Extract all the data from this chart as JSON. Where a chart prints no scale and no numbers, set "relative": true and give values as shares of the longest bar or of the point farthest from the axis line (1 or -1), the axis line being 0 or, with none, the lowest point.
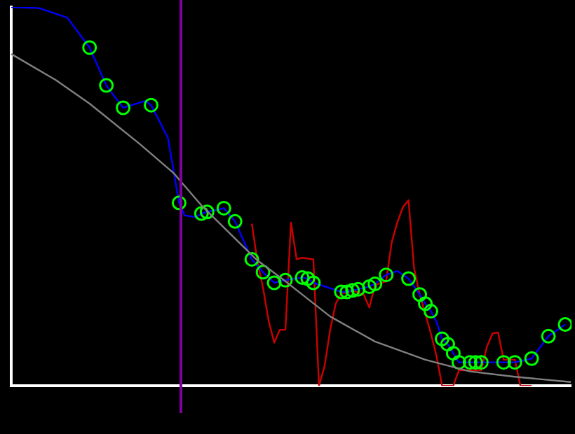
{
  "chart_data": {
    "type": "line",
    "relative": true,
    "categories": [
      null,
      null,
      null,
      null,
      null,
      null,
      null,
      null,
      null,
      null,
      null,
      null,
      null,
      null,
      null,
      null,
      null,
      null,
      null,
      null,
      null,
      null,
      null,
      null,
      null,
      null,
      null,
      null,
      null,
      null,
      null,
      null,
      null,
      null,
      null,
      null,
      null,
      null,
      null,
      null,
      null,
      null,
      null,
      null,
      null,
      null,
      null,
      null,
      null,
      null,
      null,
      null,
      null,
      null,
      null,
      null,
      null,
      null,
      null,
      null,
      null,
      null,
      null,
      null,
      null,
      null,
      null,
      null,
      null,
      null,
      null,
      null,
      null,
      null,
      null,
      null,
      null,
      null,
      null,
      null,
      null,
      null,
      null,
      null,
      null,
      null,
      null,
      null,
      null,
      null,
      null,
      null,
      null,
      null,
      null,
      null,
      null,
      null,
      null,
      null,
      null
    ],
    "series": [
      {
        "type": "line",
        "color": "#808080",
        "marker": "none",
        "values": [
          0.876,
          null,
          null,
          null,
          null,
          null,
          null,
          null,
          0.807,
          null,
          null,
          null,
          null,
          null,
          0.745,
          null,
          null,
          null,
          null,
          null,
          null,
          null,
          null,
          0.638,
          null,
          null,
          null,
          null,
          null,
          0.562,
          null,
          null,
          null,
          null,
          0.476,
          null,
          null,
          null,
          null,
          null,
          null,
          null,
          null,
          null,
          0.331,
          null,
          null,
          null,
          null,
          0.276,
          null,
          null,
          null,
          null,
          null,
          null,
          null,
          0.183,
          null,
          null,
          null,
          null,
          null,
          null,
          null,
          0.117,
          null,
          null,
          null,
          null,
          null,
          null,
          null,
          null,
          0.069,
          null,
          null,
          null,
          null,
          null,
          null,
          null,
          0.038,
          null,
          null,
          null,
          null,
          null,
          null,
          null,
          0.024,
          null,
          null,
          null,
          null,
          null,
          null,
          null,
          null,
          null,
          0.01
        ]
      },
      {
        "type": "line",
        "color": "#0000ff",
        "marker": "circle",
        "values": [
          1,
          null,
          null,
          null,
          null,
          0.997,
          null,
          null,
          null,
          null,
          0.972,
          null,
          null,
          null,
          0.893,
          null,
          null,
          0.793,
          null,
          null,
          0.734,
          null,
          null,
          null,
          0.752,
          0.741,
          null,
          null,
          0.655,
          null,
          0.483,
          0.45,
          null,
          0.445,
          0.455,
          0.459,
          null,
          null,
          0.469,
          null,
          0.434,
          null,
          null,
          0.334,
          null,
          0.3,
          null,
          0.272,
          null,
          0.279,
          null,
          null,
          0.286,
          0.283,
          0.272,
          null,
          null,
          null,
          null,
          0.248,
          0.248,
          0.252,
          0.255,
          null,
          0.262,
          0.269,
          null,
          0.293,
          null,
          0.303,
          null,
          0.283,
          null,
          0.241,
          0.217,
          0.197,
          0.169,
          0.124,
          0.11,
          0.086,
          0.062,
          null,
          0.062,
          0.062,
          0.062,
          null,
          null,
          null,
          0.062,
          null,
          0.062,
          null,
          null,
          0.072,
          null,
          null,
          0.131,
          null,
          null,
          0.162,
          null
        ],
        "colors": [
          null,
          null,
          null,
          null,
          null,
          null,
          null,
          null,
          null,
          null,
          null,
          null,
          null,
          null,
          "#00ff00",
          null,
          null,
          "#00ff00",
          null,
          null,
          "#00ff00",
          null,
          null,
          null,
          null,
          "#00ff00",
          null,
          null,
          null,
          null,
          "#00ff00",
          null,
          null,
          null,
          "#00ff00",
          "#00ff00",
          null,
          null,
          "#00ff00",
          null,
          "#00ff00",
          null,
          null,
          "#00ff00",
          null,
          "#00ff00",
          null,
          "#00ff00",
          null,
          "#00ff00",
          null,
          null,
          "#00ff00",
          "#00ff00",
          "#00ff00",
          null,
          null,
          null,
          null,
          "#00ff00",
          "#00ff00",
          "#00ff00",
          "#00ff00",
          null,
          "#00ff00",
          "#00ff00",
          null,
          "#00ff00",
          null,
          null,
          null,
          "#00ff00",
          null,
          "#00ff00",
          "#00ff00",
          "#00ff00",
          null,
          "#00ff00",
          "#00ff00",
          "#00ff00",
          "#00ff00",
          null,
          "#00ff00",
          "#00ff00",
          "#00ff00",
          null,
          null,
          null,
          "#00ff00",
          null,
          "#00ff00",
          null,
          null,
          "#00ff00",
          null,
          null,
          "#00ff00",
          null,
          null,
          "#00ff00",
          null
        ]
      },
      {
        "type": "line",
        "color": "#cc0000",
        "marker": "none",
        "values": [
          null,
          null,
          null,
          null,
          null,
          null,
          null,
          null,
          null,
          null,
          null,
          null,
          null,
          null,
          null,
          null,
          null,
          null,
          null,
          null,
          null,
          null,
          null,
          null,
          null,
          null,
          null,
          null,
          null,
          null,
          null,
          null,
          null,
          null,
          null,
          null,
          null,
          null,
          null,
          null,
          null,
          null,
          null,
          0.428,
          0.328,
          0.259,
          0.172,
          0.114,
          0.148,
          0.148,
          0.431,
          0.334,
          0.338,
          null,
          0.334,
          0,
          0.052,
          0.148,
          0.217,
          0.245,
          0.245,
          0.252,
          null,
          0.241,
          0.207,
          0.266,
          null,
          0.276,
          0.379,
          0.431,
          0.472,
          0.49,
          0.31,
          0.241,
          0.19,
          0.138,
          0.079,
          0,
          null,
          0,
          0.041,
          null,
          null,
          null,
          0.041,
          0.103,
          0.138,
          0.141,
          0.069,
          null,
          0.069,
          0,
          null,
          0,
          null,
          null,
          null,
          null,
          null,
          null,
          null
        ]
      }
    ],
    "grid": false,
    "legend": false
  }
}
